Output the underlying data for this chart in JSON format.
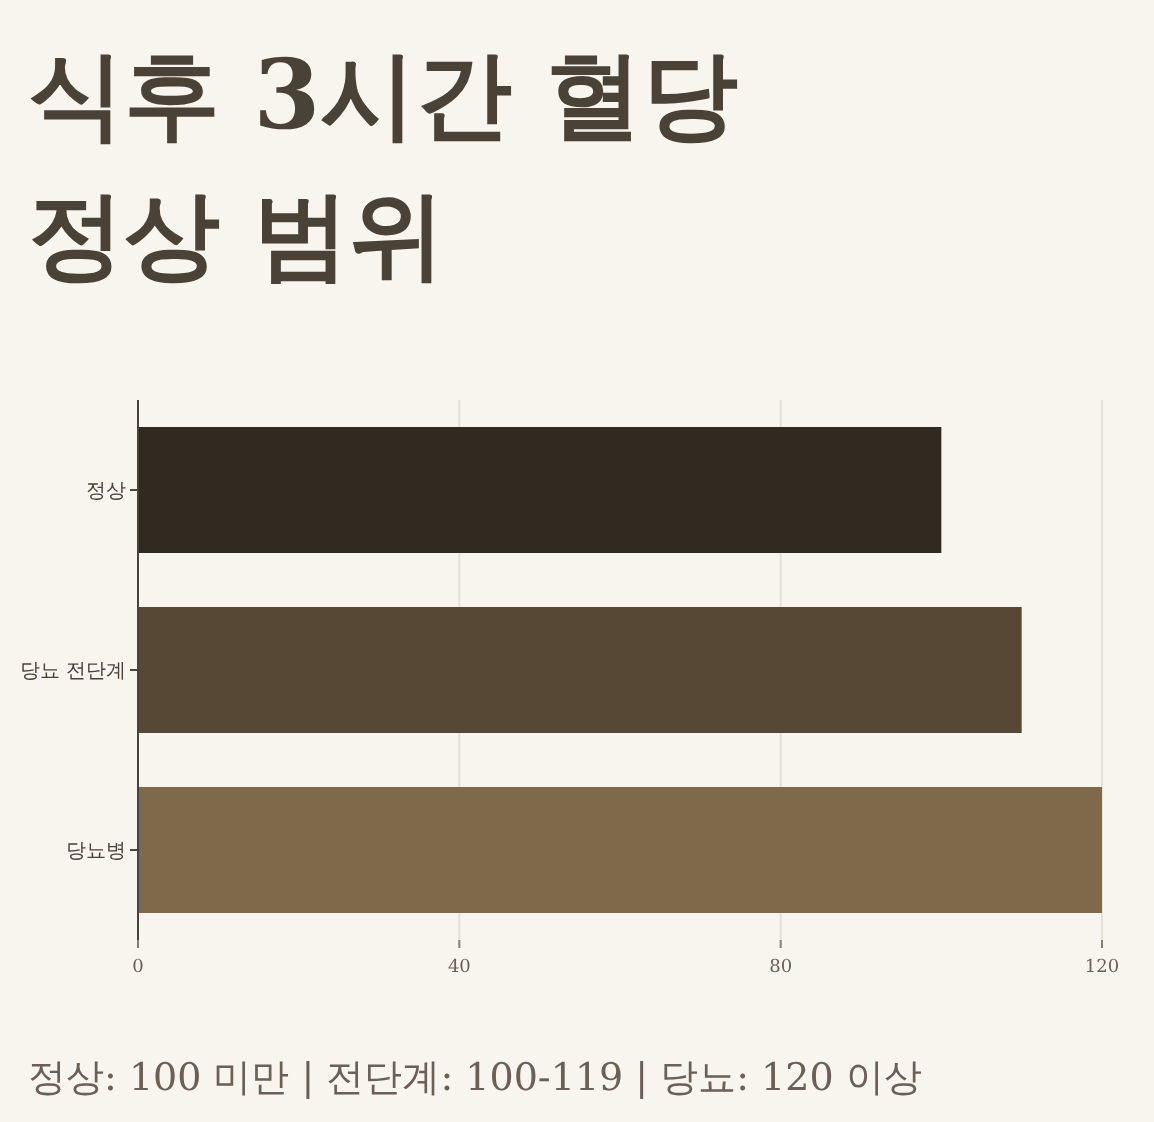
{
  "chart_data": {
    "type": "bar",
    "orientation": "horizontal",
    "title": "식후 3시간 혈당 정상 범위",
    "categories": [
      "정상",
      "당뇨 전단계",
      "당뇨병"
    ],
    "values": [
      100,
      110,
      120
    ],
    "colors": [
      "#312a20",
      "#574836",
      "#7f694b"
    ],
    "xlim": [
      0,
      120
    ],
    "xticks": [
      0,
      40,
      80,
      120
    ],
    "grid": "x",
    "annotations": [
      "정상: 100 미만 | 전단계: 100-119 | 당뇨: 120 이상"
    ]
  }
}
